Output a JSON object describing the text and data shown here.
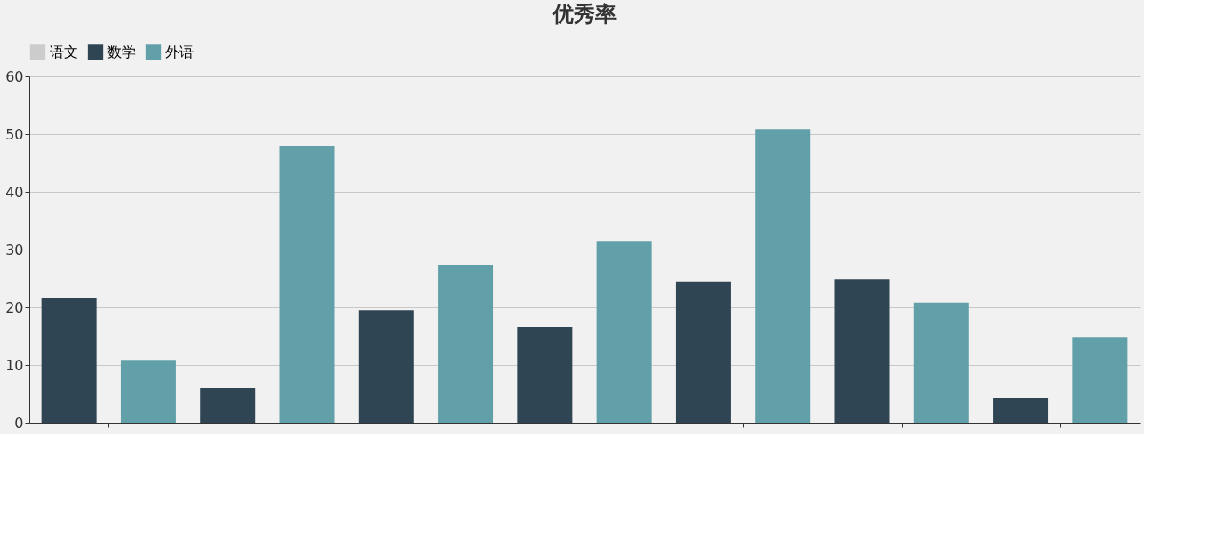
{
  "chart_data": {
    "type": "bar",
    "title": "优秀率",
    "categories": [
      null,
      null,
      null,
      null,
      null,
      null,
      null
    ],
    "series": [
      {
        "name": "语文",
        "color": "#cccccc",
        "values": [
          null,
          null,
          null,
          null,
          null,
          null,
          null
        ]
      },
      {
        "name": "数学",
        "color": "#2f4554",
        "values": [
          21.7,
          6.0,
          19.5,
          16.6,
          24.5,
          24.9,
          4.3
        ]
      },
      {
        "name": "外语",
        "color": "#61a0a8",
        "values": [
          10.9,
          48.0,
          27.4,
          31.5,
          50.9,
          20.8,
          14.9
        ]
      }
    ],
    "ylim": [
      0,
      60
    ],
    "yticks": [
      0,
      10,
      20,
      30,
      40,
      50,
      60
    ],
    "grid": "y",
    "legend": "top"
  }
}
